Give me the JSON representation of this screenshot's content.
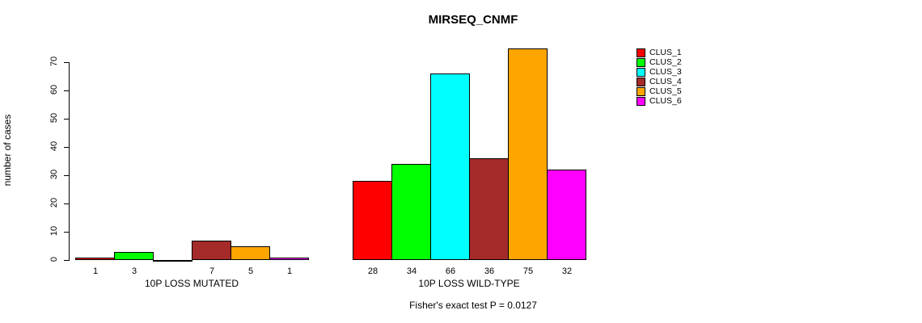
{
  "title": "MIRSEQ_CNMF",
  "chart_data": {
    "type": "bar",
    "title": "MIRSEQ_CNMF",
    "xlabel": "",
    "ylabel": "number of cases",
    "ylim": [
      0,
      77
    ],
    "yticks": [
      0,
      10,
      20,
      30,
      40,
      50,
      60,
      70
    ],
    "grid": false,
    "legend_position": "right",
    "series_names": [
      "CLUS_1",
      "CLUS_2",
      "CLUS_3",
      "CLUS_4",
      "CLUS_5",
      "CLUS_6"
    ],
    "series_colors": [
      "#ff0000",
      "#00ff00",
      "#00ffff",
      "#a52a2a",
      "#ffa500",
      "#ff00ff"
    ],
    "groups": [
      {
        "label": "10P LOSS MUTATED",
        "values": [
          1,
          3,
          0,
          7,
          5,
          1
        ]
      },
      {
        "label": "10P LOSS WILD-TYPE",
        "values": [
          28,
          34,
          66,
          36,
          75,
          32
        ]
      }
    ],
    "bar_value_labels": true,
    "footnote": "Fisher's exact test P = 0.0127"
  }
}
